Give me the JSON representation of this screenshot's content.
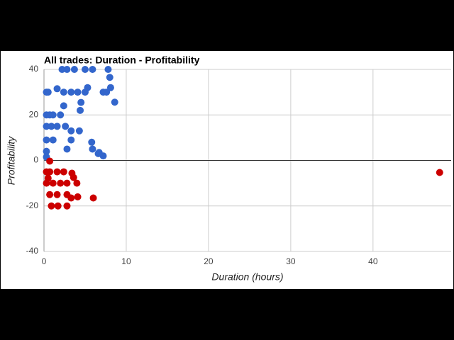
{
  "chart_data": {
    "type": "scatter",
    "title": "All trades: Duration - Profitability",
    "x_label": "Duration (hours)",
    "y_label": "Profitability",
    "xlim": [
      0,
      49.5
    ],
    "ylim": [
      -40,
      40
    ],
    "xticks": [
      0,
      10,
      20,
      30,
      40
    ],
    "yticks": [
      -40,
      -20,
      0,
      20,
      40
    ],
    "grid": true,
    "series": [
      {
        "color": "#3366cc",
        "x": [
          0.3,
          0.5,
          0.3,
          0.7,
          1.1,
          0.3,
          0.9,
          0.3,
          1.1,
          0.3,
          0.3,
          1.6,
          1.6,
          2,
          2.2,
          2.8,
          3.7,
          2.4,
          3.3,
          4.1,
          2.4,
          2.6,
          2.8,
          3.3,
          4.5,
          4.4,
          4.3,
          5,
          5.9,
          5.3,
          5.8,
          5.9,
          6.6,
          7.2,
          6.7,
          7.2,
          7.8,
          8,
          8.1,
          8.6,
          7.6,
          5,
          3.3
        ],
        "values": [
          30,
          30,
          20,
          20,
          20,
          15,
          15,
          9,
          9,
          4,
          1.5,
          31.5,
          15,
          20,
          40,
          40,
          40,
          30,
          30,
          30,
          24,
          15,
          5,
          13,
          25.5,
          22,
          13,
          40,
          40,
          32,
          8,
          5,
          3,
          2,
          3.5,
          30,
          40,
          36.5,
          32,
          25.6,
          30,
          30,
          9
        ]
      },
      {
        "color": "#cc0000",
        "x": [
          0.3,
          0.7,
          1.6,
          2.4,
          0.3,
          1.1,
          2,
          2.8,
          4,
          0.7,
          0.7,
          1.6,
          2.8,
          4.1,
          0.9,
          1.7,
          2.8,
          3.4,
          3.6,
          6,
          48.1,
          3.3,
          0.5
        ],
        "values": [
          -5,
          -5,
          -5,
          -5,
          -10,
          -10,
          -10,
          -10,
          -10,
          -0.3,
          -15,
          -15,
          -15,
          -16,
          -20,
          -20,
          -20,
          -5.6,
          -7.5,
          -16.5,
          -5.3,
          -16.5,
          -7.8
        ]
      }
    ]
  }
}
